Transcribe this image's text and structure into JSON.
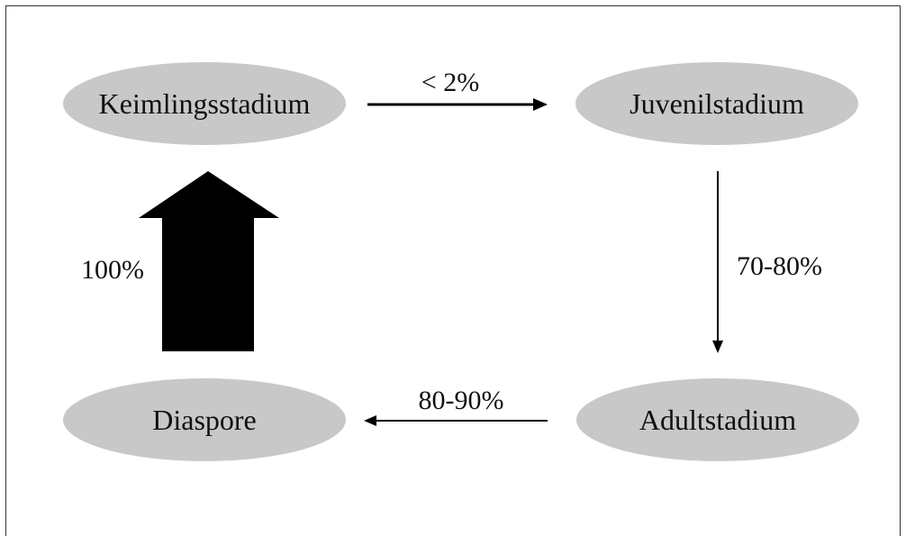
{
  "stages": {
    "keimling": "Keimlingsstadium",
    "juvenil": "Juvenilstadium",
    "adult": "Adultstadium",
    "diaspore": "Diaspore"
  },
  "transitions": {
    "keimling_to_juvenil": "< 2%",
    "juvenil_to_adult": "70-80%",
    "adult_to_diaspore": "80-90%",
    "diaspore_to_keimling": "100%"
  },
  "colors": {
    "ellipse_fill": "#c8c8c8",
    "arrow": "#000000"
  }
}
